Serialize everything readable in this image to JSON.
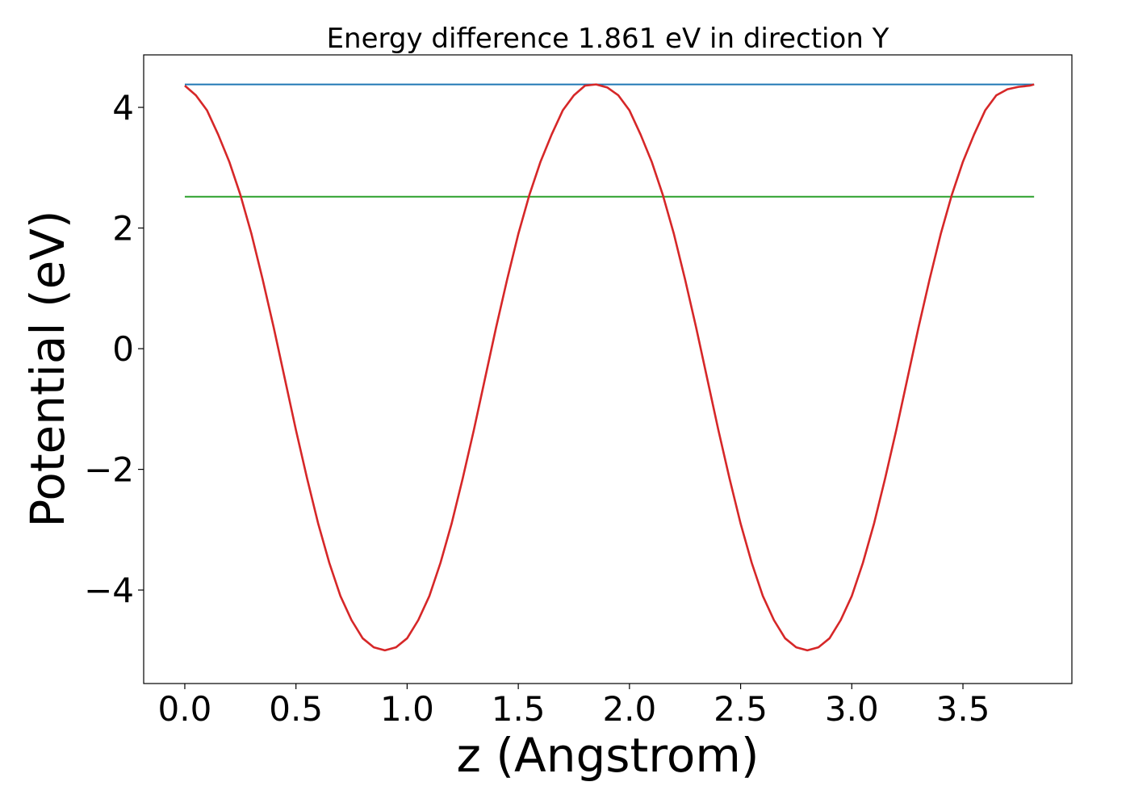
{
  "chart_data": {
    "type": "line",
    "title": "Energy difference 1.861 eV in direction Y",
    "xlabel": "z (Angstrom)",
    "ylabel": "Potential (eV)",
    "xlim": [
      -0.185,
      3.99
    ],
    "ylim": [
      -5.55,
      4.87
    ],
    "xticks": [
      0.0,
      0.5,
      1.0,
      1.5,
      2.0,
      2.5,
      3.0,
      3.5
    ],
    "xtick_labels": [
      "0.0",
      "0.5",
      "1.0",
      "1.5",
      "2.0",
      "2.5",
      "3.0",
      "3.5"
    ],
    "yticks": [
      -4,
      -2,
      0,
      2,
      4
    ],
    "ytick_labels": [
      "−4",
      "−2",
      "0",
      "2",
      "4"
    ],
    "grid": false,
    "series": [
      {
        "color": "#d62728",
        "x": [
          0.0,
          0.05,
          0.1,
          0.15,
          0.2,
          0.25,
          0.3,
          0.35,
          0.4,
          0.45,
          0.5,
          0.55,
          0.6,
          0.65,
          0.7,
          0.75,
          0.8,
          0.85,
          0.9,
          0.95,
          1.0,
          1.05,
          1.1,
          1.15,
          1.2,
          1.25,
          1.3,
          1.35,
          1.4,
          1.45,
          1.5,
          1.55,
          1.6,
          1.65,
          1.7,
          1.75,
          1.8,
          1.85,
          1.9,
          1.95,
          2.0,
          2.05,
          2.1,
          2.15,
          2.2,
          2.25,
          2.3,
          2.35,
          2.4,
          2.45,
          2.5,
          2.55,
          2.6,
          2.65,
          2.7,
          2.75,
          2.8,
          2.85,
          2.9,
          2.95,
          3.0,
          3.05,
          3.1,
          3.15,
          3.2,
          3.25,
          3.3,
          3.35,
          3.4,
          3.45,
          3.5,
          3.55,
          3.6,
          3.65,
          3.7,
          3.75,
          3.8,
          3.82
        ],
        "y": [
          4.36,
          4.2,
          3.95,
          3.55,
          3.1,
          2.55,
          1.9,
          1.15,
          0.35,
          -0.5,
          -1.35,
          -2.15,
          -2.9,
          -3.55,
          -4.1,
          -4.5,
          -4.8,
          -4.95,
          -5.0,
          -4.95,
          -4.8,
          -4.5,
          -4.1,
          -3.55,
          -2.9,
          -2.15,
          -1.35,
          -0.5,
          0.35,
          1.15,
          1.9,
          2.55,
          3.1,
          3.55,
          3.95,
          4.2,
          4.36,
          4.38,
          4.33,
          4.2,
          3.95,
          3.55,
          3.1,
          2.55,
          1.9,
          1.15,
          0.35,
          -0.5,
          -1.35,
          -2.15,
          -2.9,
          -3.55,
          -4.1,
          -4.5,
          -4.8,
          -4.95,
          -5.0,
          -4.95,
          -4.8,
          -4.5,
          -4.1,
          -3.55,
          -2.9,
          -2.15,
          -1.35,
          -0.5,
          0.35,
          1.15,
          1.9,
          2.55,
          3.1,
          3.55,
          3.95,
          4.2,
          4.3,
          4.34,
          4.36,
          4.38
        ]
      },
      {
        "color": "#1f77b4",
        "x": [
          0.0,
          3.82
        ],
        "y": [
          4.38,
          4.38
        ]
      },
      {
        "color": "#2ca02c",
        "x": [
          0.0,
          3.82
        ],
        "y": [
          2.52,
          2.52
        ]
      }
    ]
  }
}
